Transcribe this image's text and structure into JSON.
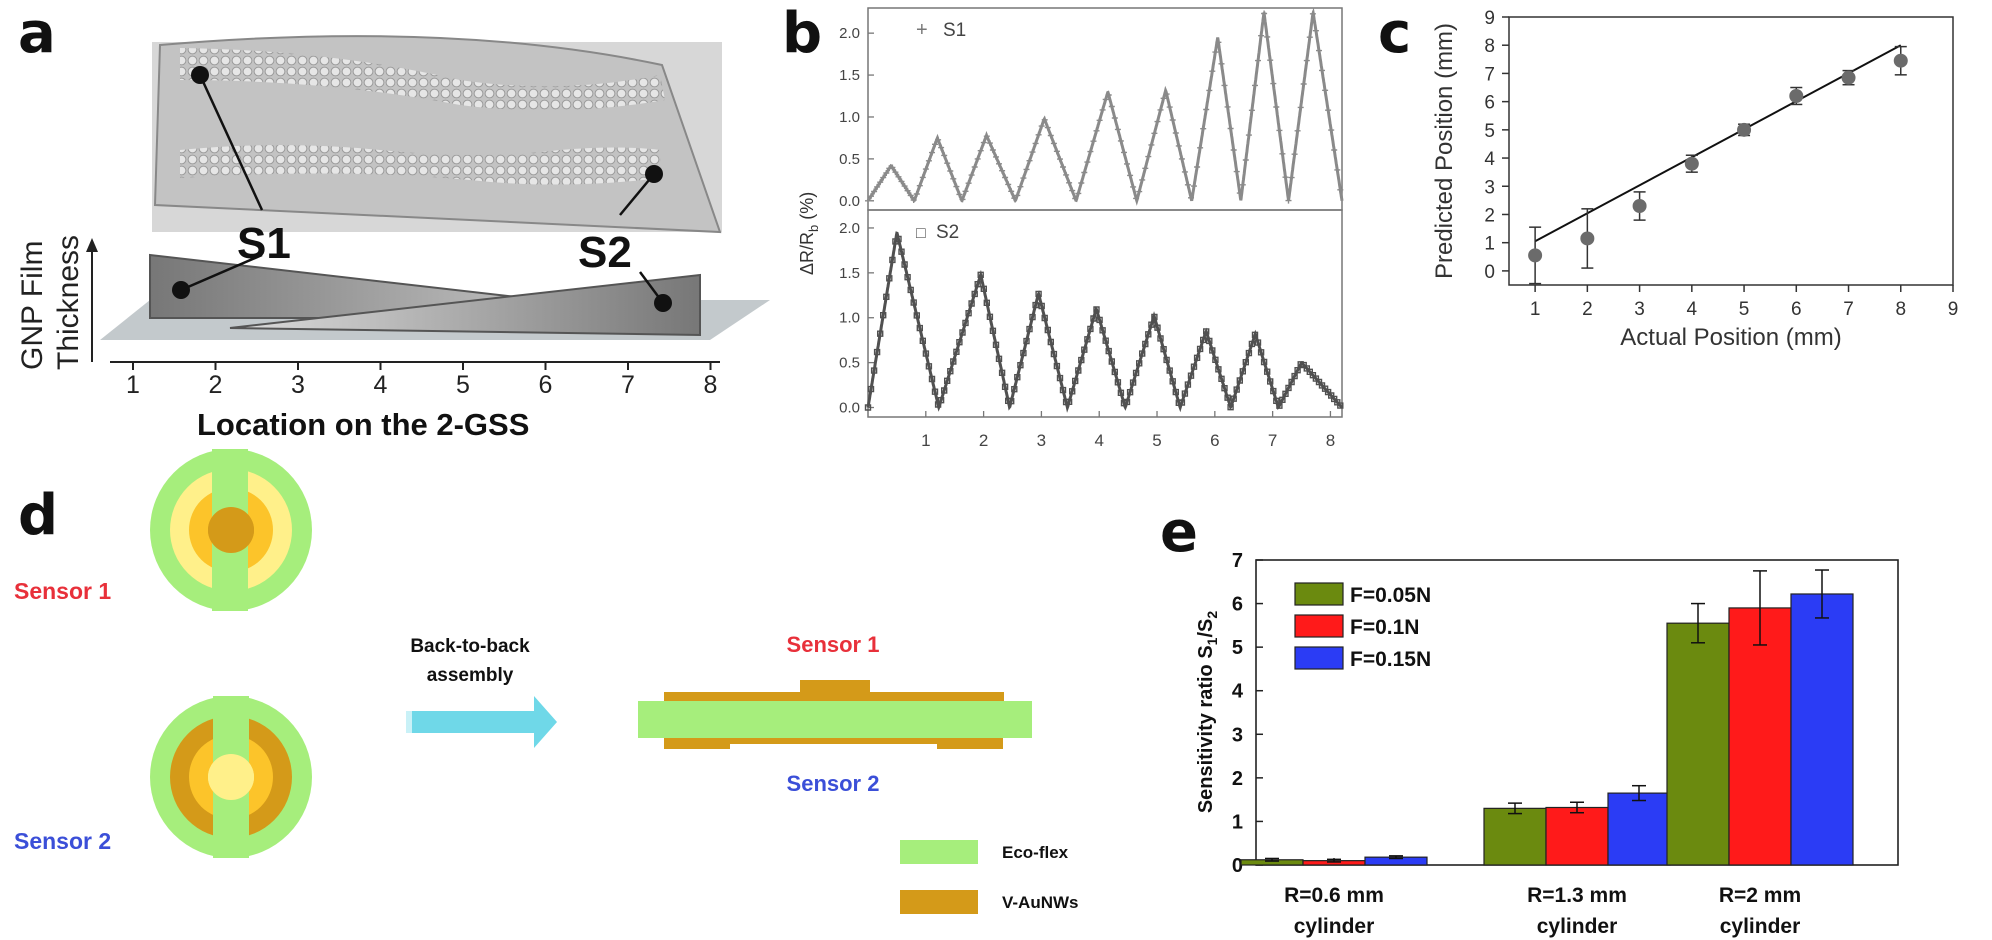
{
  "panels": {
    "a": "a",
    "b": "b",
    "c": "c",
    "d": "d",
    "e": "e"
  },
  "panel_a": {
    "ylabel_line1": "GNP Film",
    "ylabel_line2": "Thickness",
    "xlabel": "Location on the 2-GSS",
    "ticks": [
      "1",
      "2",
      "3",
      "4",
      "5",
      "6",
      "7",
      "8"
    ],
    "sensor1": "S1",
    "sensor2": "S2"
  },
  "chart_data": [
    {
      "id": "b-top",
      "type": "line",
      "series_name": "S1",
      "marker": "+",
      "ylabel": "ΔR/R",
      "ylabel_sub": "b",
      "ylabel_unit": " (%)",
      "xlim": [
        0,
        8.2
      ],
      "ylim": [
        -0.05,
        2.3
      ],
      "yticks": [
        "0.0",
        "0.5",
        "1.0",
        "1.5",
        "2.0"
      ],
      "ytick_values": [
        0,
        0.5,
        1.0,
        1.5,
        2.0
      ],
      "peaks_x": [
        0.4,
        1.2,
        2.05,
        3.05,
        4.15,
        5.15,
        6.05,
        6.85,
        7.7
      ],
      "peaks_y": [
        0.42,
        0.75,
        0.78,
        0.98,
        1.3,
        1.32,
        1.95,
        2.25,
        2.25
      ]
    },
    {
      "id": "b-bottom",
      "type": "line",
      "series_name": "S2",
      "marker": "□",
      "xlim": [
        0,
        8.2
      ],
      "ylim": [
        -0.05,
        2.2
      ],
      "xticks": [
        "1",
        "2",
        "3",
        "4",
        "5",
        "6",
        "7",
        "8"
      ],
      "xtick_values": [
        1,
        2,
        3,
        4,
        5,
        6,
        7,
        8
      ],
      "yticks": [
        "0.0",
        "0.5",
        "1.0",
        "1.5",
        "2.0"
      ],
      "ytick_values": [
        0,
        0.5,
        1.0,
        1.5,
        2.0
      ],
      "peaks_x": [
        0.5,
        1.95,
        2.95,
        3.95,
        4.95,
        5.85,
        6.7,
        7.5
      ],
      "peaks_y": [
        1.95,
        1.48,
        1.27,
        1.1,
        1.02,
        0.85,
        0.82,
        0.5
      ]
    },
    {
      "id": "c",
      "type": "scatter",
      "xlabel": "Actual Position (mm)",
      "ylabel": "Predicted Position (mm)",
      "xlim": [
        0.5,
        9
      ],
      "ylim": [
        -0.5,
        9
      ],
      "xticks": [
        "1",
        "2",
        "3",
        "4",
        "5",
        "6",
        "7",
        "8",
        "9"
      ],
      "yticks": [
        "0",
        "1",
        "2",
        "3",
        "4",
        "5",
        "6",
        "7",
        "8",
        "9"
      ],
      "x": [
        1,
        2,
        3,
        4,
        5,
        6,
        7,
        8
      ],
      "y": [
        0.55,
        1.15,
        2.3,
        3.8,
        5.0,
        6.2,
        6.85,
        7.45
      ],
      "err": [
        1.0,
        1.05,
        0.5,
        0.3,
        0.2,
        0.3,
        0.25,
        0.5
      ],
      "fit_line": {
        "x": [
          1,
          8
        ],
        "y": [
          1.05,
          8.0
        ]
      }
    },
    {
      "id": "e",
      "type": "bar",
      "ylabel": "Sensitivity ratio S",
      "ylabel_sub1": "1",
      "ylabel_slash": "/S",
      "ylabel_sub2": "2",
      "ylim": [
        0,
        7
      ],
      "yticks": [
        "0",
        "1",
        "2",
        "3",
        "4",
        "5",
        "6",
        "7"
      ],
      "categories": [
        {
          "line1": "R=0.6 mm",
          "line2": "cylinder"
        },
        {
          "line1": "R=1.3 mm",
          "line2": "cylinder"
        },
        {
          "line1": "R=2 mm",
          "line2": "cylinder"
        }
      ],
      "series": [
        {
          "name": "F=0.05N",
          "color": "#6b8a0f",
          "values": [
            0.12,
            1.3,
            5.55
          ],
          "err": [
            0.03,
            0.12,
            0.45
          ]
        },
        {
          "name": "F=0.1N",
          "color": "#ff1a1a",
          "values": [
            0.1,
            1.32,
            5.9
          ],
          "err": [
            0.03,
            0.12,
            0.85
          ]
        },
        {
          "name": "F=0.15N",
          "color": "#2b3cf5",
          "values": [
            0.18,
            1.65,
            6.22
          ],
          "err": [
            0.03,
            0.17,
            0.55
          ]
        }
      ]
    }
  ],
  "panel_d": {
    "sensor1": "Sensor 1",
    "sensor2": "Sensor 2",
    "assembly_line1": "Back-to-back",
    "assembly_line2": "assembly",
    "assembled_top": "Sensor 1",
    "assembled_bottom": "Sensor 2",
    "legend": [
      {
        "label": "Eco-flex",
        "color": "#a6ee7c"
      },
      {
        "label": "V-AuNWs",
        "color": "#d49a19"
      }
    ],
    "colors": {
      "red": "#e8303a",
      "blue": "#3b4fd8",
      "arrow": "#6fd8e8",
      "light_yellow": "#fff08a",
      "mid_yellow": "#fcc42a"
    }
  }
}
